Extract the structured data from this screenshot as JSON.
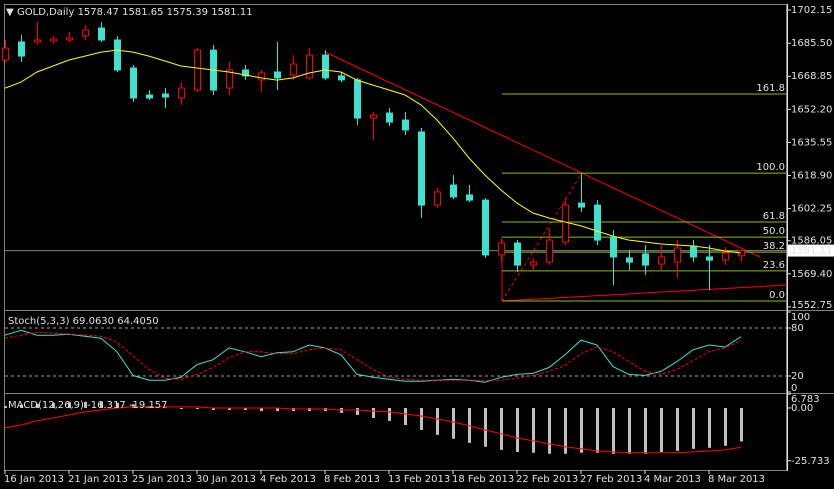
{
  "chart_data": [
    {
      "type": "candlestick",
      "title": "GOLD,Daily",
      "categories": [
        "16 Jan 2013",
        null,
        null,
        null,
        "21 Jan 2013",
        null,
        null,
        null,
        "25 Jan 2013",
        null,
        null,
        null,
        "30 Jan 2013",
        null,
        null,
        null,
        "4 Feb 2013",
        null,
        null,
        null,
        "8 Feb 2013",
        null,
        null,
        null,
        "13 Feb 2013",
        null,
        null,
        null,
        "18 Feb 2013",
        null,
        null,
        null,
        "22 Feb 2013",
        null,
        null,
        null,
        "27 Feb 2013",
        null,
        null,
        null,
        "4 Mar 2013",
        null,
        null,
        null,
        "8 Mar 2013",
        null,
        null
      ],
      "open": [
        1677.0,
        1686.1,
        1686.1,
        1686.6,
        1687.1,
        1689.1,
        1693.1,
        1687.1,
        1673.0,
        1659.4,
        1659.9,
        1657.9,
        1661.9,
        1682.0,
        1662.9,
        1672.0,
        1667.0,
        1671.0,
        1669.5,
        1668.0,
        1679.5,
        1669.0,
        1667.0,
        1647.8,
        1650.3,
        1646.8,
        1640.8,
        1604.0,
        1614.1,
        1609.1,
        1606.5,
        1578.9,
        1584.9,
        1573.8,
        1575.3,
        1585.4,
        1605.0,
        1604.0,
        1587.9,
        1577.4,
        1579.4,
        1574.3,
        1575.3,
        1583.4,
        1577.9,
        1576.3,
        1578.47
      ],
      "high": [
        1687.1,
        1689.6,
        1696.1,
        1689.1,
        1691.1,
        1694.6,
        1696.1,
        1689.1,
        1674.5,
        1661.9,
        1662.9,
        1665.9,
        1683.0,
        1684.6,
        1676.0,
        1674.5,
        1672.0,
        1686.1,
        1679.5,
        1683.0,
        1682.0,
        1671.0,
        1668.0,
        1650.8,
        1652.8,
        1650.8,
        1642.8,
        1612.6,
        1619.1,
        1614.1,
        1607.5,
        1587.4,
        1586.4,
        1577.4,
        1592.4,
        1607.5,
        1620.1,
        1606.5,
        1591.4,
        1581.4,
        1583.9,
        1583.4,
        1586.4,
        1586.4,
        1583.9,
        1582.9,
        1581.65
      ],
      "low": [
        1676.0,
        1676.0,
        1684.6,
        1685.1,
        1686.1,
        1687.1,
        1686.1,
        1671.0,
        1655.9,
        1656.9,
        1652.8,
        1654.4,
        1660.9,
        1659.4,
        1659.4,
        1667.0,
        1660.9,
        1661.9,
        1667.0,
        1667.0,
        1667.0,
        1665.9,
        1644.3,
        1636.7,
        1643.8,
        1639.3,
        1597.5,
        1602.5,
        1607.0,
        1605.5,
        1577.4,
        1575.3,
        1570.3,
        1571.3,
        1573.8,
        1583.9,
        1600.5,
        1583.9,
        1563.8,
        1571.3,
        1568.8,
        1571.3,
        1567.3,
        1575.3,
        1561.2,
        1573.8,
        1575.39
      ],
      "close": [
        1683.0,
        1679.0,
        1687.1,
        1687.6,
        1688.1,
        1692.1,
        1687.1,
        1672.0,
        1657.9,
        1657.9,
        1658.4,
        1662.9,
        1682.0,
        1661.9,
        1672.0,
        1669.0,
        1670.5,
        1668.0,
        1675.0,
        1679.5,
        1668.0,
        1667.0,
        1647.8,
        1649.3,
        1645.8,
        1641.8,
        1604.0,
        1610.6,
        1608.1,
        1606.5,
        1578.9,
        1584.9,
        1573.8,
        1575.3,
        1586.4,
        1604.0,
        1603.0,
        1586.4,
        1577.9,
        1575.3,
        1573.8,
        1577.9,
        1582.4,
        1577.9,
        1576.3,
        1579.9,
        1581.11
      ],
      "up_color": "#ff0000",
      "down_color": "#40e0d0",
      "ma": {
        "color": "#ffff00",
        "values": [
          1662.9,
          1665.9,
          1671.0,
          1674.0,
          1677.0,
          1679.0,
          1681.0,
          1682.0,
          1681.0,
          1679.0,
          1676.5,
          1674.0,
          1673.0,
          1672.0,
          1671.0,
          1669.5,
          1668.0,
          1666.9,
          1668.0,
          1670.5,
          1672.0,
          1671.0,
          1666.9,
          1664.4,
          1661.9,
          1659.4,
          1654.4,
          1646.8,
          1637.7,
          1627.7,
          1619.1,
          1611.6,
          1605.0,
          1600.0,
          1597.5,
          1595.5,
          1593.5,
          1590.9,
          1588.4,
          1586.4,
          1585.4,
          1584.4,
          1583.9,
          1583.4,
          1582.4,
          1580.9,
          1579.9
        ]
      },
      "fib": {
        "high": 1620.1,
        "low": 1555.7,
        "color": "#8fbc1e",
        "levels": [
          161.8,
          {
            "value": 100,
            "label": "100.0"
          },
          61.8,
          {
            "value": 50,
            "label": "50.0"
          },
          38.2,
          23.6,
          {
            "value": 0,
            "label": "0.0"
          }
        ]
      },
      "ylim": [
        1551.7,
        1704.7
      ],
      "yticks": [
        1702.15,
        {
          "value": 1685.5,
          "label": "1685.50"
        },
        1668.85,
        {
          "value": 1652.2,
          "label": "1652.20"
        },
        1635.55,
        {
          "value": 1618.9,
          "label": "1618.90"
        },
        1602.25,
        1586.05,
        {
          "value": 1569.4,
          "label": "1569.40"
        },
        1552.75
      ]
    },
    {
      "type": "line",
      "title": "Stoch(5,3,3)",
      "header_values": [
        {
          "value": 69.063,
          "label": "69.0630"
        },
        {
          "value": 64.405,
          "label": "64.4050"
        }
      ],
      "series": [
        {
          "color": "#40e0d0",
          "values": [
            71.0,
            77.1,
            71.0,
            71.0,
            72.2,
            69.8,
            67.3,
            50.2,
            20.8,
            14.7,
            14.7,
            18.4,
            34.3,
            40.4,
            55.1,
            50.2,
            44.1,
            49.0,
            50.2,
            58.8,
            55.1,
            46.5,
            22.0,
            18.4,
            15.9,
            13.5,
            13.5,
            14.7,
            15.9,
            14.7,
            12.2,
            18.4,
            22.0,
            23.3,
            30.6,
            46.5,
            64.9,
            58.8,
            31.8,
            22.0,
            20.8,
            25.7,
            38.0,
            52.7,
            58.8,
            56.3,
            69.063
          ]
        },
        {
          "color": "#ff0000",
          "dashed": true,
          "values": [
            67.3,
            71.0,
            74.7,
            73.5,
            72.2,
            71.0,
            69.8,
            62.4,
            45.3,
            28.2,
            17.1,
            15.9,
            22.0,
            30.6,
            42.9,
            50.2,
            50.2,
            47.8,
            47.8,
            52.7,
            55.1,
            52.7,
            40.4,
            28.2,
            18.4,
            15.9,
            14.7,
            14.7,
            14.7,
            14.7,
            14.7,
            14.7,
            17.1,
            20.8,
            25.7,
            33.1,
            47.8,
            56.3,
            50.2,
            38.0,
            25.7,
            22.0,
            28.2,
            39.2,
            50.2,
            55.1,
            64.405
          ]
        }
      ],
      "ylim": [
        0,
        100
      ],
      "yticks": [
        100,
        80,
        20,
        0
      ]
    },
    {
      "type": "macd",
      "title": "MACD(12,26,9)",
      "header_values": [
        -16.317,
        -19.157
      ],
      "series": [
        {
          "type": "bar",
          "color": "#c0c0c0",
          "values": [
            1.0,
            1.5,
            2.0,
            2.5,
            2.8,
            3.0,
            3.0,
            2.6,
            1.8,
            1.0,
            0.2,
            -0.5,
            -0.5,
            -1.0,
            -1.0,
            -1.0,
            -1.5,
            -1.5,
            -1.5,
            -1.5,
            -1.5,
            -2.4,
            -3.4,
            -4.9,
            -6.3,
            -8.3,
            -10.7,
            -13.1,
            -15.0,
            -17.0,
            -18.9,
            -20.4,
            -21.4,
            -21.8,
            -22.3,
            -22.3,
            -21.8,
            -21.8,
            -22.3,
            -22.3,
            -22.3,
            -21.4,
            -20.9,
            -19.9,
            -19.4,
            -18.4,
            -16.317
          ]
        },
        {
          "type": "line",
          "color": "#ff0000",
          "values": [
            -9.7,
            -8.3,
            -6.3,
            -4.9,
            -3.4,
            -1.9,
            -1.0,
            0,
            0.5,
            0.5,
            0.5,
            0.5,
            0.5,
            0,
            0,
            0,
            0,
            0,
            -0.5,
            -0.5,
            -0.5,
            -1.0,
            -1.0,
            -1.5,
            -1.9,
            -2.9,
            -3.9,
            -5.3,
            -6.8,
            -8.7,
            -10.7,
            -12.6,
            -14.6,
            -16.0,
            -17.5,
            -18.9,
            -19.9,
            -20.9,
            -21.4,
            -21.8,
            -21.8,
            -21.8,
            -21.8,
            -21.4,
            -20.9,
            -20.4,
            -19.157
          ]
        }
      ],
      "ylim": [
        -30.2,
        6.8
      ],
      "yticks": [
        6.783,
        {
          "value": 0,
          "label": "0.00"
        },
        -25.733
      ]
    }
  ]
}
